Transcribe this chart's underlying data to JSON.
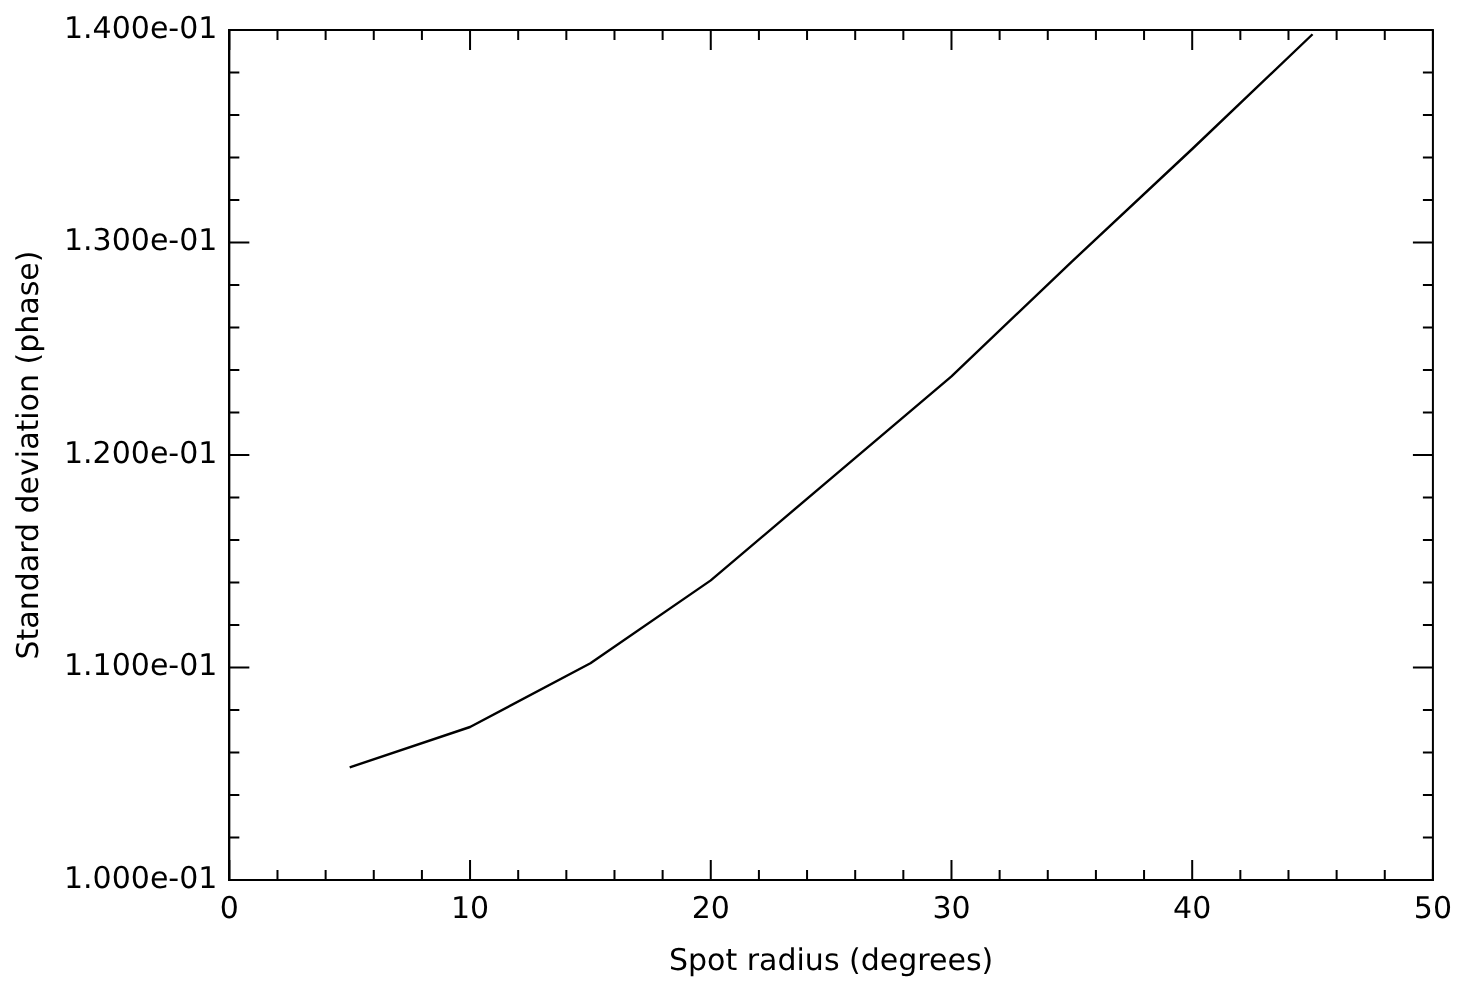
{
  "chart_data": {
    "type": "line",
    "xlabel": "Spot radius (degrees)",
    "ylabel": "Standard deviation (phase)",
    "x": [
      5,
      10,
      15,
      20,
      25,
      30,
      35,
      40,
      45
    ],
    "series": [
      {
        "color": "#000000",
        "values": [
          0.1053,
          0.1072,
          0.1102,
          0.1141,
          0.1189,
          0.1237,
          0.1291,
          0.1344,
          0.1398
        ]
      }
    ],
    "xlim": [
      0,
      50
    ],
    "xticks": [
      0,
      10,
      20,
      30,
      40,
      50
    ],
    "ylim": [
      0.1,
      0.14
    ],
    "yticks": [
      {
        "value": 0.1,
        "label": "1.000e-01"
      },
      {
        "value": 0.11,
        "label": "1.100e-01"
      },
      {
        "value": 0.12,
        "label": "1.200e-01"
      },
      {
        "value": 0.13,
        "label": "1.300e-01"
      },
      {
        "value": 0.14,
        "label": "1.400e-01"
      }
    ],
    "grid": false,
    "legend": false,
    "marker": "none",
    "line_style": "solid"
  }
}
